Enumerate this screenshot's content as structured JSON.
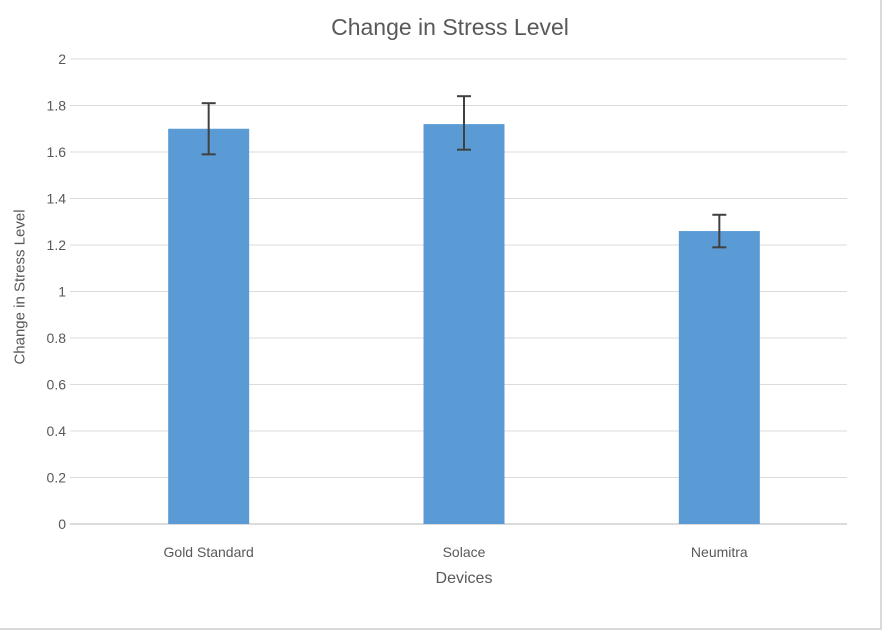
{
  "chart_data": {
    "type": "bar",
    "title": "Change in Stress Level",
    "xlabel": "Devices",
    "ylabel": "Change in Stress Level",
    "categories": [
      "Gold Standard",
      "Solace",
      "Neumitra"
    ],
    "values": [
      1.7,
      1.72,
      1.26
    ],
    "error_bars": {
      "upper": [
        1.81,
        1.84,
        1.33
      ],
      "lower": [
        1.59,
        1.61,
        1.19
      ]
    },
    "ylim": [
      0,
      2
    ],
    "ytick_step": 0.2,
    "ytick_labels": [
      "0",
      "0.2",
      "0.4",
      "0.6",
      "0.8",
      "1",
      "1.2",
      "1.4",
      "1.6",
      "1.8",
      "2"
    ],
    "grid": true,
    "legend": "none",
    "bar_color": "#5B9BD5",
    "error_bar_color": "#404040",
    "gridline_color": "#DBDBDB",
    "axis_line_color": "#CFCFCF",
    "text_color": "#595959",
    "frame_border_color": "#D9D9D9"
  }
}
